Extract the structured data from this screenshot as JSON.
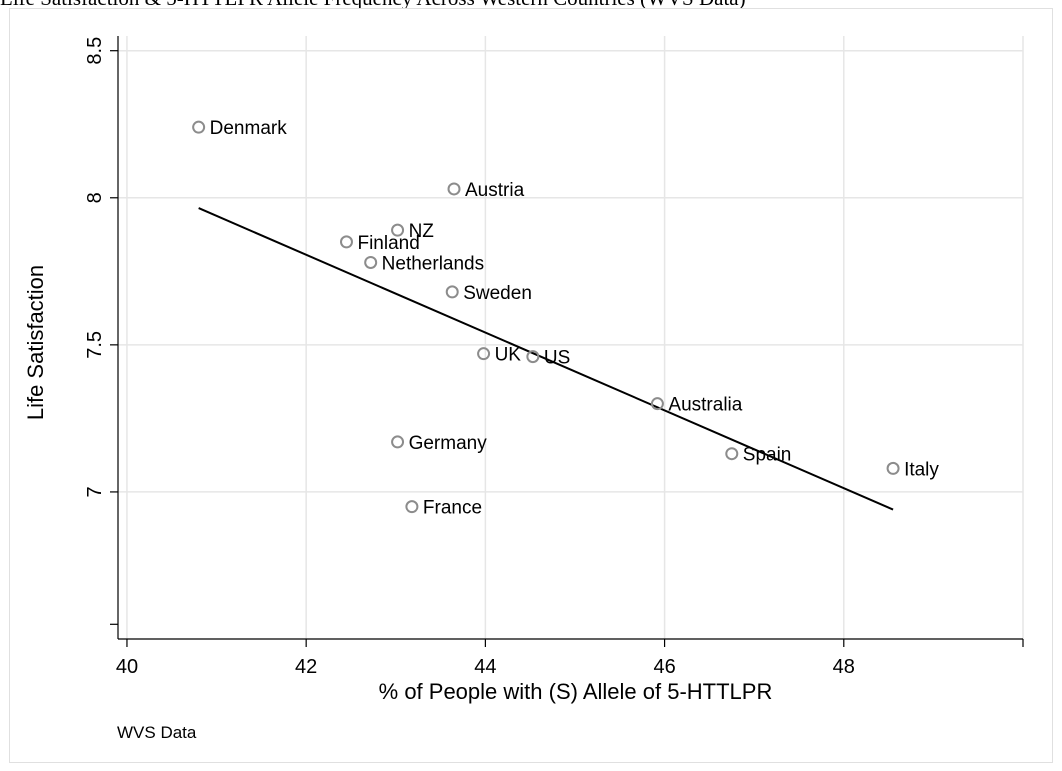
{
  "caption": "Life Satisfaction & 5-HTTLPR Allele Frequency Across Western Countries (WVS Data)",
  "colors": {
    "background": "#ffffff",
    "grid": "#e6e6e6",
    "axis": "#000000",
    "marker": "#8c8c8c",
    "fit_line": "#000000",
    "frame": "#e0e0e0"
  },
  "chart_data": {
    "type": "scatter",
    "title": "",
    "xlabel": "% of People with (S) Allele of 5-HTTLPR",
    "ylabel": "Life Satisfaction",
    "note": "WVS Data",
    "xlim": [
      39.9,
      50.0
    ],
    "ylim": [
      6.5,
      8.55
    ],
    "xticks": [
      40,
      42,
      44,
      46,
      48
    ],
    "xtick_labels": [
      "40",
      "42",
      "44",
      "46",
      "48"
    ],
    "xgrid_extra": [
      50
    ],
    "yticks": [
      7,
      7.5,
      8,
      8.5
    ],
    "ytick_labels": [
      "7",
      "7.5",
      "8",
      "8.5"
    ],
    "yminor": [
      6.55
    ],
    "grid": true,
    "legend": "none",
    "points": [
      {
        "label": "Denmark",
        "x": 40.8,
        "y": 8.24
      },
      {
        "label": "Austria",
        "x": 43.65,
        "y": 8.03
      },
      {
        "label": "NZ",
        "x": 43.02,
        "y": 7.89
      },
      {
        "label": "Finland",
        "x": 42.45,
        "y": 7.85
      },
      {
        "label": "Netherlands",
        "x": 42.72,
        "y": 7.78
      },
      {
        "label": "Sweden",
        "x": 43.63,
        "y": 7.68
      },
      {
        "label": "UK",
        "x": 43.98,
        "y": 7.47
      },
      {
        "label": "US",
        "x": 44.53,
        "y": 7.46
      },
      {
        "label": "Australia",
        "x": 45.92,
        "y": 7.3
      },
      {
        "label": "Germany",
        "x": 43.02,
        "y": 7.17
      },
      {
        "label": "Spain",
        "x": 46.75,
        "y": 7.13
      },
      {
        "label": "Italy",
        "x": 48.55,
        "y": 7.08
      },
      {
        "label": "France",
        "x": 43.18,
        "y": 6.95
      }
    ],
    "fit_line": {
      "x": [
        40.8,
        48.55
      ],
      "y": [
        7.965,
        6.94
      ]
    }
  }
}
